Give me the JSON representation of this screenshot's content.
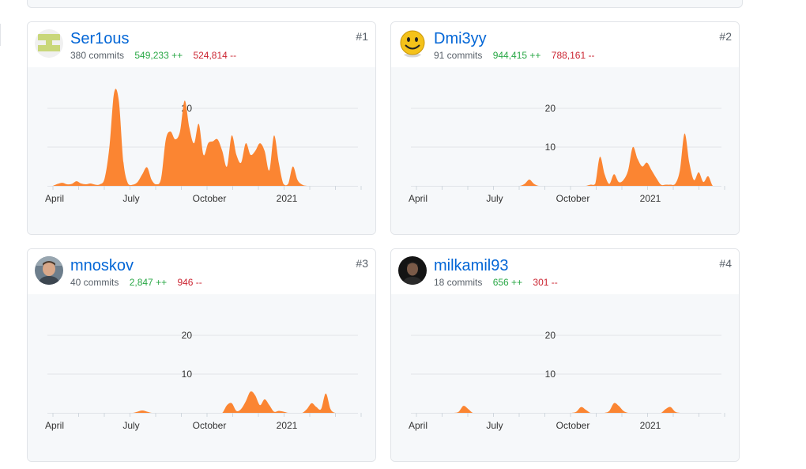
{
  "colors": {
    "area": "#fb8532",
    "link": "#0366d6",
    "add": "#28a745",
    "del": "#cb2431",
    "grid": "#e1e4e8"
  },
  "contributors": [
    {
      "rank": "#1",
      "login": "Ser1ous",
      "commits": "380 commits",
      "additions": "549,233 ++",
      "deletions": "524,814 --",
      "avatar_icon": "identicon-avatar"
    },
    {
      "rank": "#2",
      "login": "Dmi3yy",
      "commits": "91 commits",
      "additions": "944,415 ++",
      "deletions": "788,161 --",
      "avatar_icon": "smiley-avatar"
    },
    {
      "rank": "#3",
      "login": "mnoskov",
      "commits": "40 commits",
      "additions": "2,847 ++",
      "deletions": "946 --",
      "avatar_icon": "photo-avatar"
    },
    {
      "rank": "#4",
      "login": "milkamil93",
      "commits": "18 commits",
      "additions": "656 ++",
      "deletions": "301 --",
      "avatar_icon": "photo-avatar-dark"
    }
  ],
  "chart_data": [
    {
      "type": "area",
      "series": [
        {
          "name": "Ser1ous",
          "x": [
            0,
            3,
            6,
            9,
            12,
            15,
            18,
            21,
            24,
            27,
            30,
            33,
            36,
            39,
            42,
            45,
            48,
            51,
            54,
            57,
            60,
            63,
            66,
            69,
            72,
            75,
            78,
            81,
            84,
            87,
            90,
            93,
            96,
            99,
            102,
            105,
            108,
            111,
            114,
            117,
            120,
            123,
            126,
            129,
            132,
            135,
            138,
            141,
            144,
            147,
            150,
            153,
            156,
            159,
            162,
            165,
            168,
            171,
            174,
            177,
            180,
            183,
            186,
            189,
            192
          ],
          "values": [
            0,
            0.5,
            0.8,
            0.4,
            0.5,
            1.2,
            0.6,
            0.4,
            0.6,
            0.3,
            0.4,
            2,
            10,
            24,
            22,
            6,
            0.5,
            0.3,
            1,
            3,
            4.8,
            1.5,
            0.4,
            2,
            12,
            14,
            12,
            14,
            22,
            15,
            11,
            16,
            8,
            11,
            11.5,
            12,
            9,
            5,
            13,
            8,
            6,
            11,
            8,
            9,
            11,
            9,
            4,
            13,
            6,
            0.5,
            0.5,
            5,
            1.5,
            0.3,
            0,
            0,
            0,
            0,
            0,
            0,
            0,
            0,
            0,
            0,
            0
          ]
        }
      ],
      "yticks": [
        10,
        20
      ],
      "xtick_labels": [
        "April",
        "July",
        "October",
        "2021"
      ],
      "ylim": [
        0,
        30
      ]
    },
    {
      "type": "area",
      "series": [
        {
          "name": "Dmi3yy",
          "x": [
            0,
            3,
            6,
            9,
            12,
            15,
            18,
            21,
            24,
            27,
            30,
            33,
            36,
            39,
            42,
            45,
            48,
            51,
            54,
            57,
            60,
            63,
            66,
            69,
            72,
            75,
            78,
            81,
            84,
            87,
            90,
            93,
            96,
            99,
            102,
            105,
            108,
            111,
            114,
            117,
            120,
            123,
            126,
            129,
            132,
            135,
            138,
            141,
            144,
            147,
            150,
            153,
            156,
            159,
            162,
            165,
            168,
            171,
            174,
            177,
            180,
            183,
            186,
            189,
            192
          ],
          "values": [
            0,
            0,
            0,
            0,
            0,
            0,
            0,
            0,
            0,
            0,
            0,
            0,
            0,
            0,
            0,
            0,
            0,
            0,
            0,
            0,
            0,
            0,
            0,
            0.5,
            1.6,
            0.5,
            0,
            0,
            0,
            0,
            0,
            0,
            0,
            0,
            0,
            0,
            0,
            0.3,
            0.5,
            7.5,
            3,
            0.5,
            3,
            1,
            1.5,
            4,
            10,
            7,
            5,
            6,
            4,
            2,
            0.3,
            0.3,
            0.3,
            0.5,
            4,
            13.5,
            6,
            1.5,
            3.5,
            1,
            2.5,
            0,
            0
          ]
        }
      ],
      "yticks": [
        10,
        20
      ],
      "xtick_labels": [
        "April",
        "July",
        "October",
        "2021"
      ],
      "ylim": [
        0,
        30
      ]
    },
    {
      "type": "area",
      "series": [
        {
          "name": "mnoskov",
          "x": [
            0,
            3,
            6,
            9,
            12,
            15,
            18,
            21,
            24,
            27,
            30,
            33,
            36,
            39,
            42,
            45,
            48,
            51,
            54,
            57,
            60,
            63,
            66,
            69,
            72,
            75,
            78,
            81,
            84,
            87,
            90,
            93,
            96,
            99,
            102,
            105,
            108,
            111,
            114,
            117,
            120,
            123,
            126,
            129,
            132,
            135,
            138,
            141,
            144,
            147,
            150,
            153,
            156,
            159,
            162,
            165,
            168,
            171,
            174,
            177,
            180,
            183,
            186,
            189,
            192
          ],
          "values": [
            0,
            0,
            0,
            0,
            0,
            0,
            0,
            0,
            0,
            0,
            0,
            0,
            0,
            0,
            0,
            0,
            0,
            0,
            0.3,
            0.6,
            0.3,
            0,
            0,
            0,
            0,
            0,
            0,
            0,
            0,
            0,
            0,
            0,
            0,
            0,
            0,
            0,
            0,
            2,
            2.5,
            0.5,
            1,
            3,
            5.5,
            4.5,
            2,
            3.5,
            2,
            0.3,
            0.5,
            0.3,
            0,
            0,
            0,
            0,
            1,
            2.5,
            1.5,
            1,
            5,
            1,
            0,
            0,
            0,
            0,
            0
          ]
        }
      ],
      "yticks": [
        10,
        20
      ],
      "xtick_labels": [
        "April",
        "July",
        "October",
        "2021"
      ],
      "ylim": [
        0,
        30
      ]
    },
    {
      "type": "area",
      "series": [
        {
          "name": "milkamil93",
          "x": [
            0,
            3,
            6,
            9,
            12,
            15,
            18,
            21,
            24,
            27,
            30,
            33,
            36,
            39,
            42,
            45,
            48,
            51,
            54,
            57,
            60,
            63,
            66,
            69,
            72,
            75,
            78,
            81,
            84,
            87,
            90,
            93,
            96,
            99,
            102,
            105,
            108,
            111,
            114,
            117,
            120,
            123,
            126,
            129,
            132,
            135,
            138,
            141,
            144,
            147,
            150,
            153,
            156,
            159,
            162,
            165,
            168,
            171,
            174,
            177,
            180,
            183,
            186,
            189,
            192
          ],
          "values": [
            0,
            0,
            0,
            0,
            0,
            0,
            0,
            0,
            0,
            0.3,
            1.8,
            1,
            0,
            0,
            0,
            0,
            0,
            0,
            0,
            0,
            0,
            0,
            0,
            0,
            0,
            0,
            0,
            0,
            0,
            0,
            0,
            0,
            0,
            0,
            0.3,
            1.5,
            0.8,
            0,
            0,
            0,
            0,
            0.5,
            2.5,
            1.8,
            0.5,
            0,
            0,
            0,
            0,
            0,
            0,
            0,
            0,
            1,
            1.5,
            0.3,
            0,
            0,
            0,
            0,
            0,
            0,
            0,
            0,
            0
          ]
        }
      ],
      "yticks": [
        10,
        20
      ],
      "xtick_labels": [
        "April",
        "July",
        "October",
        "2021"
      ],
      "ylim": [
        0,
        30
      ]
    }
  ]
}
